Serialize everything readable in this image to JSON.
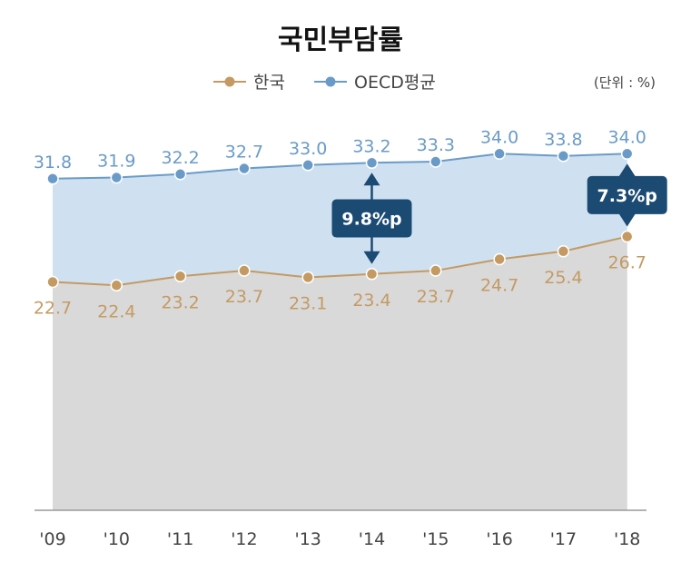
{
  "chart_data": {
    "type": "area",
    "title": "국민부담률",
    "unit": "(단위 : %)",
    "categories": [
      "'09",
      "'10",
      "'11",
      "'12",
      "'13",
      "'14",
      "'15",
      "'16",
      "'17",
      "'18"
    ],
    "series": [
      {
        "name": "OECD평균",
        "values": [
          31.8,
          31.9,
          32.2,
          32.7,
          33.0,
          33.2,
          33.3,
          34.0,
          33.8,
          34.0
        ],
        "labels": [
          "31.8",
          "31.9",
          "32.2",
          "32.7",
          "33.0",
          "33.2",
          "33.3",
          "34.0",
          "33.8",
          "34.0"
        ]
      },
      {
        "name": "한국",
        "values": [
          22.7,
          22.4,
          23.2,
          23.7,
          23.1,
          23.4,
          23.7,
          24.7,
          25.4,
          26.7
        ],
        "labels": [
          "22.7",
          "22.4",
          "23.2",
          "23.7",
          "23.1",
          "23.4",
          "23.7",
          "24.7",
          "25.4",
          "26.7"
        ]
      }
    ],
    "annotations": [
      {
        "category": "'14",
        "text": "9.8%p"
      },
      {
        "category": "'18",
        "text": "7.3%p"
      }
    ],
    "legend": "top-center",
    "grid": false
  },
  "colors": {
    "oecd_line": "#6a9bc8",
    "oecd_fill": "#cfe1f1",
    "korea_line": "#c49a62",
    "korea_fill": "#d9d9d9",
    "callout": "#1b4a73",
    "arrow": "#1b4a73"
  }
}
